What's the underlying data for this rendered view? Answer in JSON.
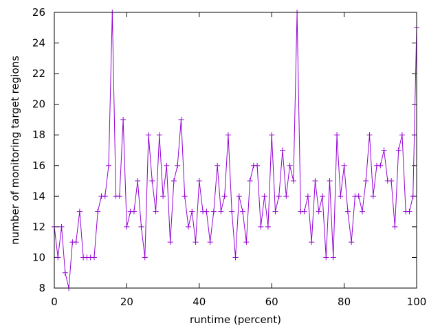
{
  "chart_data": {
    "type": "line",
    "title": "",
    "xlabel": "runtime (percent)",
    "ylabel": "number of monitoring target regions",
    "xlim": [
      0,
      100
    ],
    "ylim": [
      8,
      26
    ],
    "xticks": [
      0,
      20,
      40,
      60,
      80,
      100
    ],
    "yticks": [
      8,
      10,
      12,
      14,
      16,
      18,
      20,
      22,
      24,
      26
    ],
    "grid": false,
    "legend": "none",
    "marker": "plus",
    "color": "#9400d3",
    "series": [
      {
        "x": [
          0,
          1,
          2,
          3,
          4,
          5,
          6,
          7,
          8,
          9,
          10,
          11,
          12,
          13,
          14,
          15,
          16,
          17,
          18,
          19,
          20,
          21,
          22,
          23,
          24,
          25,
          26,
          27,
          28,
          29,
          30,
          31,
          32,
          33,
          34,
          35,
          36,
          37,
          38,
          39,
          40,
          41,
          42,
          43,
          44,
          45,
          46,
          47,
          48,
          49,
          50,
          51,
          52,
          53,
          54,
          55,
          56,
          57,
          58,
          59,
          60,
          61,
          62,
          63,
          64,
          65,
          66,
          67,
          68,
          69,
          70,
          71,
          72,
          73,
          74,
          75,
          76,
          77,
          78,
          79,
          80,
          81,
          82,
          83,
          84,
          85,
          86,
          87,
          88,
          89,
          90,
          91,
          92,
          93,
          94,
          95,
          96,
          97,
          98,
          99,
          100
        ],
        "values": [
          12,
          10,
          12,
          9,
          8,
          11,
          11,
          13,
          10,
          10,
          10,
          10,
          13,
          14,
          14,
          16,
          26,
          14,
          14,
          19,
          12,
          13,
          13,
          15,
          12,
          10,
          18,
          15,
          13,
          18,
          14,
          16,
          11,
          15,
          16,
          19,
          14,
          12,
          13,
          11,
          15,
          13,
          13,
          11,
          13,
          16,
          13,
          14,
          18,
          13,
          10,
          14,
          13,
          11,
          15,
          16,
          16,
          12,
          14,
          12,
          18,
          13,
          14,
          17,
          14,
          16,
          15,
          26,
          13,
          13,
          14,
          11,
          15,
          13,
          14,
          10,
          15,
          10,
          18,
          14,
          16,
          13,
          11,
          14,
          14,
          13,
          15,
          18,
          14,
          16,
          16,
          17,
          15,
          15,
          12,
          17,
          18,
          13,
          13,
          14,
          25
        ]
      }
    ]
  }
}
